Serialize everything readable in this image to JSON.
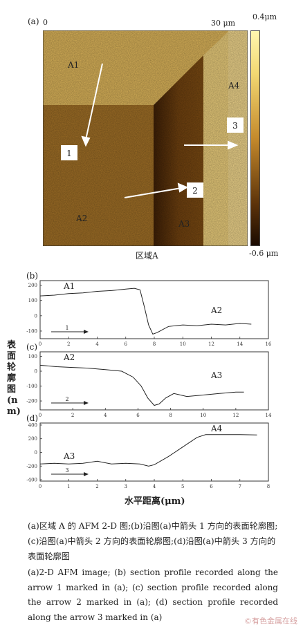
{
  "afm": {
    "panel_letter": "(a)",
    "x_start": "0",
    "x_end": "30 μm",
    "scale_top": "0.4μm",
    "scale_bottom": "-0.6 μm",
    "region_caption": "区域A",
    "regions": [
      "A1",
      "A2",
      "A3",
      "A4"
    ],
    "arrow_labels": [
      "1",
      "2",
      "3"
    ]
  },
  "profiles": {
    "y_axis_label": "表面轮廓图(nm)",
    "x_axis_label": "水平距离(μm)"
  },
  "chart_data": [
    {
      "type": "line",
      "panel": "(b)",
      "region_labels": [
        "A1",
        "A2"
      ],
      "arrow_label": "1",
      "x_ticks": [
        0,
        2,
        4,
        6,
        8,
        10,
        12,
        14,
        16
      ],
      "y_ticks": [
        200,
        100,
        0,
        -100
      ],
      "xlim": [
        0,
        16
      ],
      "ylim": [
        -150,
        230
      ],
      "x": [
        0,
        1,
        2,
        3,
        4,
        5,
        6,
        6.6,
        7.0,
        7.3,
        7.6,
        7.9,
        8.2,
        8.6,
        9,
        10,
        11,
        12,
        13,
        14,
        14.8
      ],
      "y": [
        130,
        135,
        145,
        150,
        160,
        165,
        175,
        180,
        170,
        60,
        -60,
        -120,
        -110,
        -90,
        -70,
        -60,
        -65,
        -55,
        -60,
        -50,
        -55
      ]
    },
    {
      "type": "line",
      "panel": "(c)",
      "region_labels": [
        "A2",
        "A3"
      ],
      "arrow_label": "2",
      "x_ticks": [
        0,
        2,
        4,
        6,
        8,
        10,
        12,
        14
      ],
      "y_ticks": [
        100,
        0,
        -100,
        -200
      ],
      "xlim": [
        0,
        14
      ],
      "ylim": [
        -260,
        130
      ],
      "x": [
        0,
        1,
        2,
        3,
        4,
        5,
        5.7,
        6.2,
        6.6,
        7.0,
        7.3,
        7.7,
        8.2,
        9,
        10,
        11,
        12,
        12.5
      ],
      "y": [
        40,
        30,
        25,
        20,
        10,
        0,
        -40,
        -100,
        -180,
        -230,
        -220,
        -180,
        -150,
        -170,
        -160,
        -150,
        -140,
        -140
      ]
    },
    {
      "type": "line",
      "panel": "(d)",
      "region_labels": [
        "A3",
        "A4"
      ],
      "arrow_label": "3",
      "x_ticks": [
        0,
        1,
        2,
        3,
        4,
        5,
        6,
        7,
        8
      ],
      "y_ticks": [
        400,
        200,
        0,
        -200,
        -400
      ],
      "xlim": [
        0,
        8
      ],
      "ylim": [
        -420,
        430
      ],
      "x": [
        0,
        0.5,
        1,
        1.5,
        2,
        2.5,
        3,
        3.5,
        3.8,
        4.0,
        4.5,
        5,
        5.5,
        5.8,
        6.2,
        7,
        7.6
      ],
      "y": [
        -170,
        -160,
        -170,
        -160,
        -130,
        -170,
        -160,
        -170,
        -200,
        -180,
        -60,
        80,
        220,
        260,
        260,
        260,
        255
      ]
    }
  ],
  "caption": {
    "zh": "(a)区域 A 的 AFM 2-D 图;(b)沿图(a)中箭头 1 方向的表面轮廓图;(c)沿图(a)中箭头 2 方向的表面轮廓图;(d)沿图(a)中箭头 3 方向的表面轮廓图",
    "en": "(a)2-D AFM image; (b) section profile recorded along the arrow 1 marked in (a); (c) section profile recorded along the arrow 2 marked in (a); (d) section profile recorded along the arrow 3 marked in (a)"
  },
  "watermark": "©有色金属在线"
}
